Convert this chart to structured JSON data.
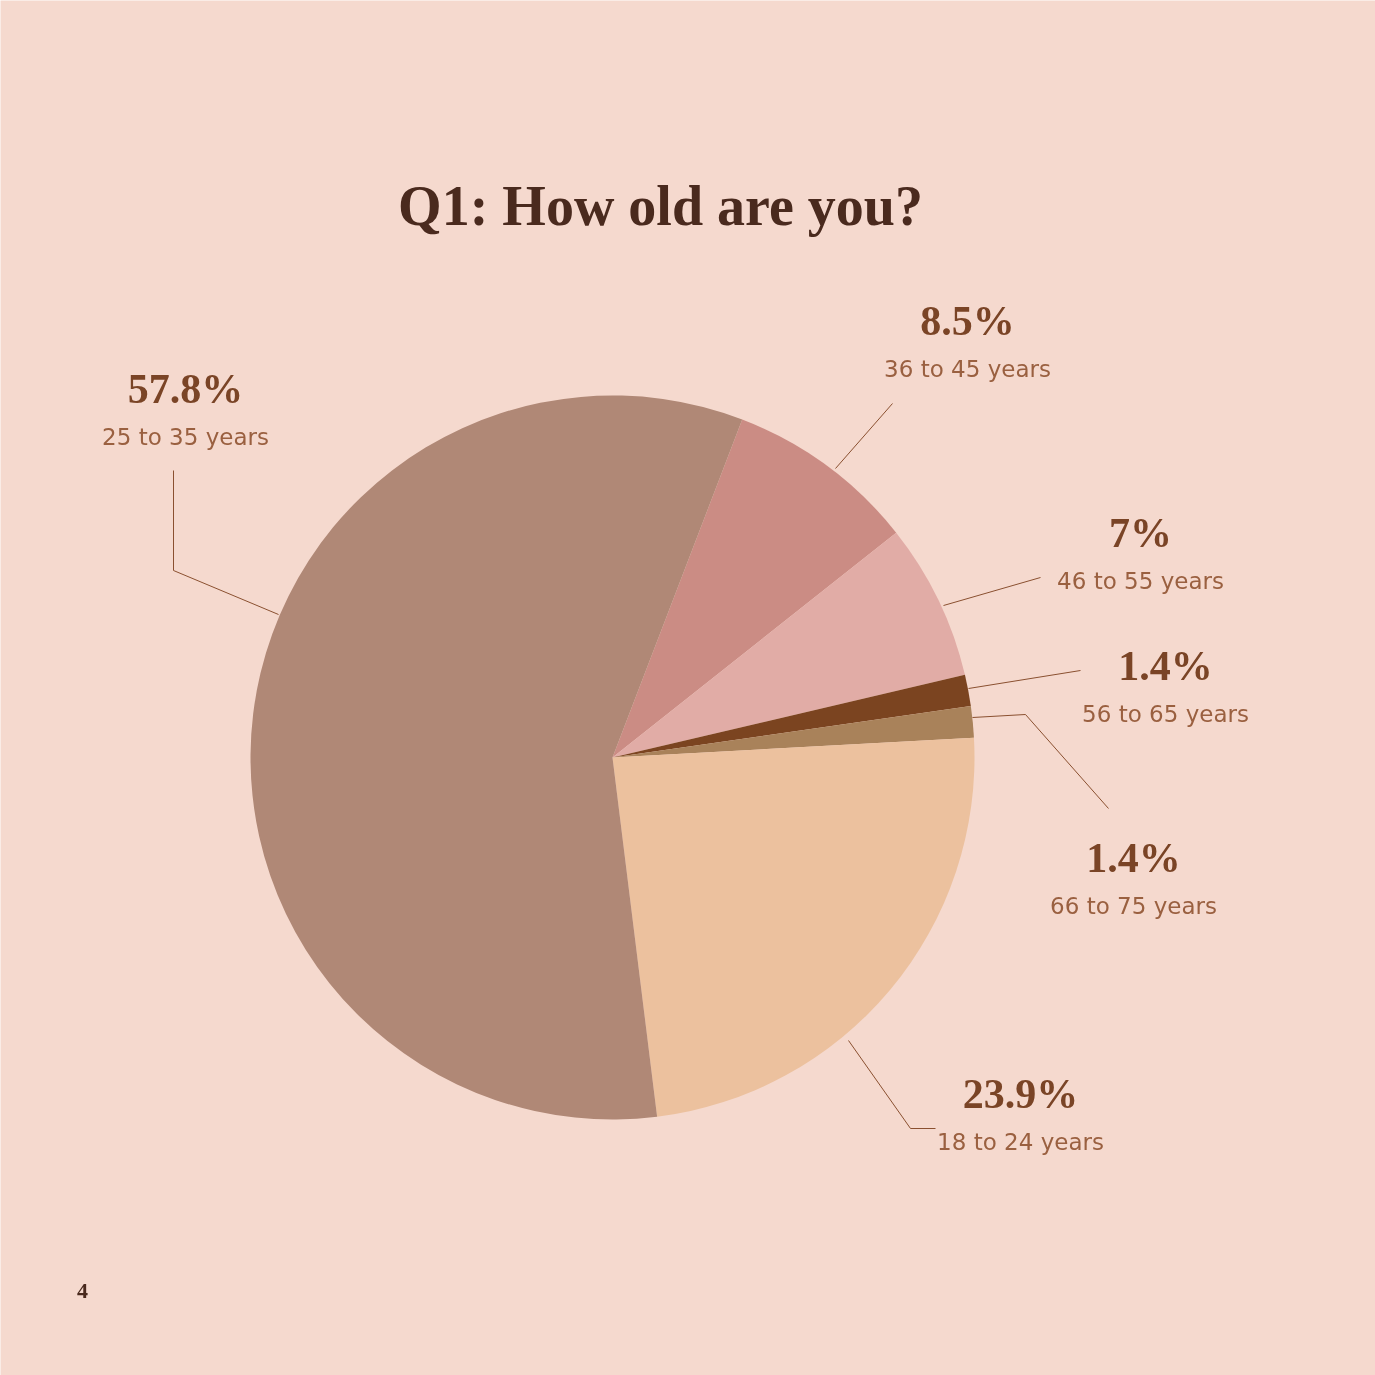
{
  "chart_data": {
    "type": "pie",
    "title": "Q1: How old are you?",
    "categories": [
      "36 to 45 years",
      "46 to 55 years",
      "56 to 65 years",
      "66 to 75 years",
      "18 to 24 years",
      "25 to 35 years"
    ],
    "values": [
      8.5,
      7,
      1.4,
      1.4,
      23.9,
      57.8
    ],
    "value_labels": [
      "8.5%",
      "7%",
      "1.4%",
      "1.4%",
      "23.9%",
      "57.8%"
    ],
    "colors": [
      "#cb8c84",
      "#e1aca6",
      "#7b4420",
      "#a9825a",
      "#ecc19e",
      "#b08876"
    ],
    "annotations": [
      "4"
    ]
  }
}
